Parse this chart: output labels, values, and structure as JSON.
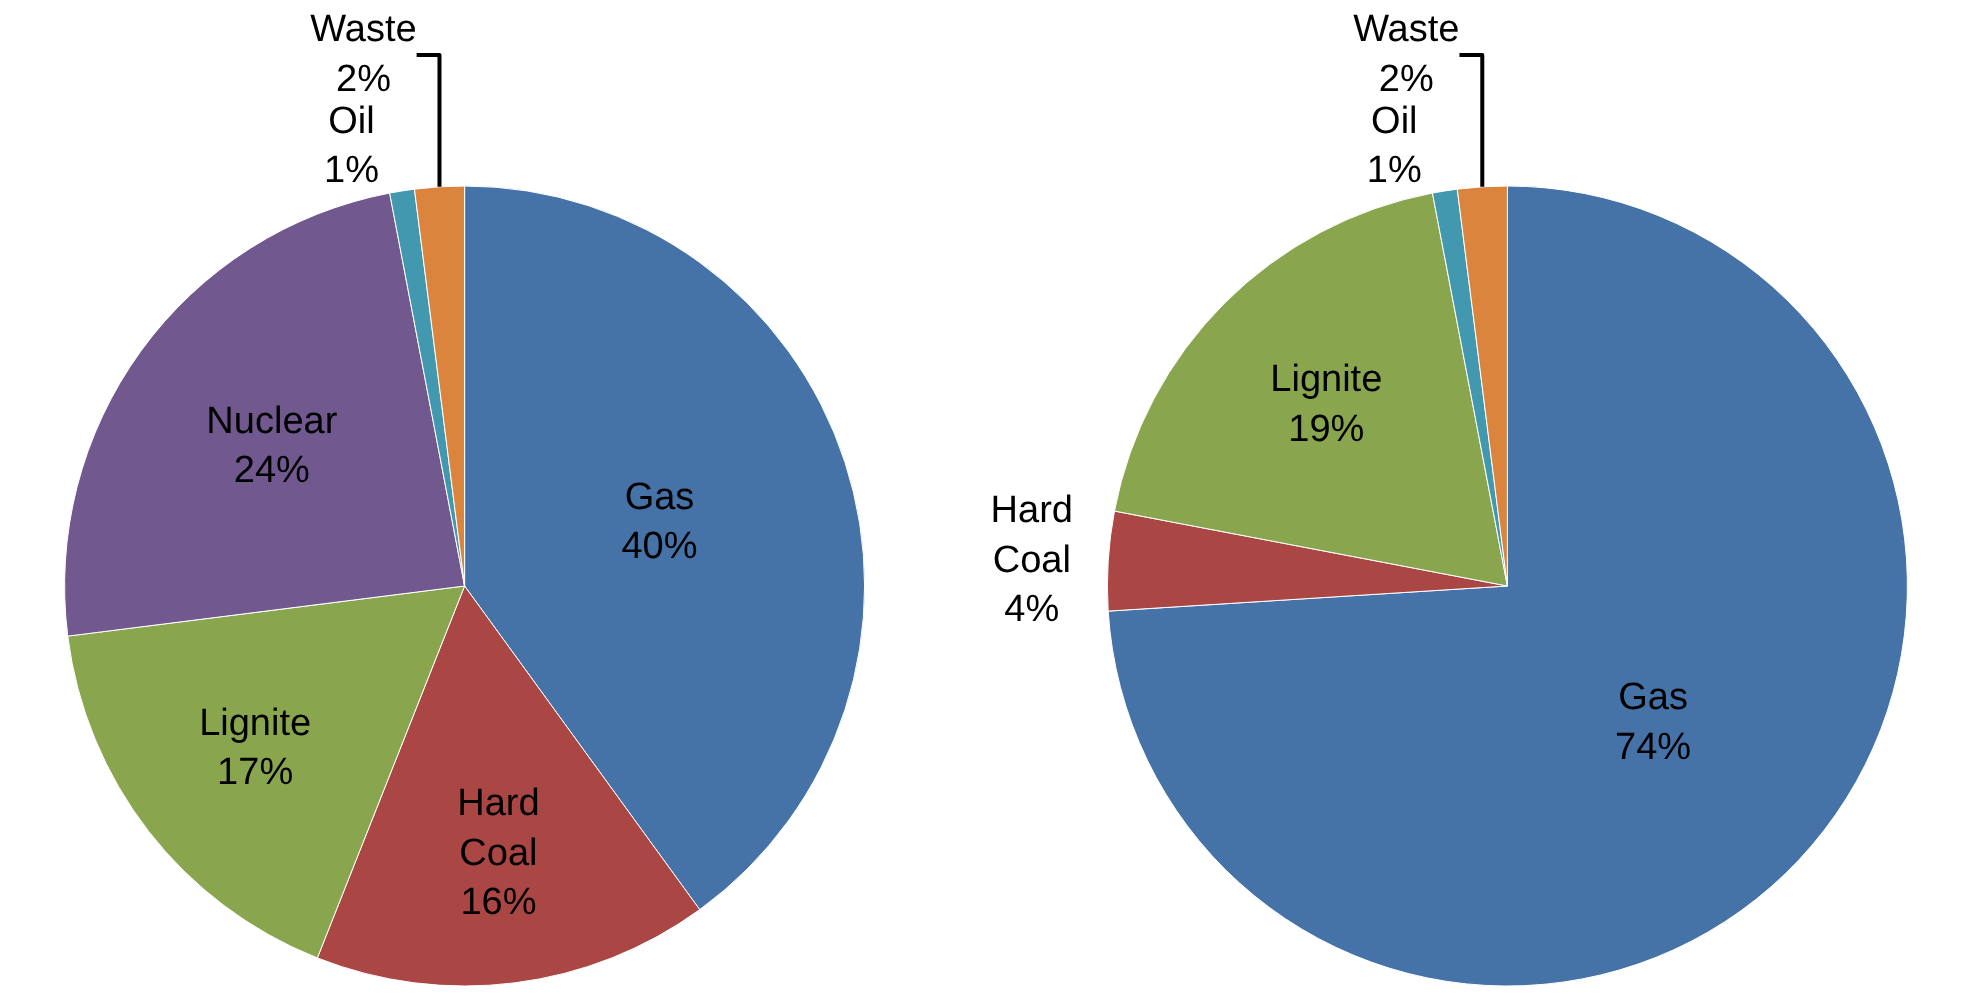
{
  "chart_data": [
    {
      "type": "pie",
      "categories": [
        "Gas",
        "Hard Coal",
        "Lignite",
        "Nuclear",
        "Oil",
        "Waste"
      ],
      "values": [
        40,
        16,
        17,
        24,
        1,
        2
      ],
      "value_labels": [
        "40%",
        "16%",
        "17%",
        "24%",
        "1%",
        "2%"
      ],
      "colors": [
        "#4572a7",
        "#aa4643",
        "#89a54e",
        "#71588f",
        "#4198af",
        "#db843d"
      ],
      "legend": false
    },
    {
      "type": "pie",
      "categories": [
        "Gas",
        "Hard Coal",
        "Lignite",
        "Oil",
        "Waste"
      ],
      "values": [
        74,
        4,
        19,
        1,
        2
      ],
      "value_labels": [
        "74%",
        "4%",
        "19%",
        "1%",
        "2%"
      ],
      "colors": [
        "#4572a7",
        "#aa4643",
        "#89a54e",
        "#4198af",
        "#db843d"
      ],
      "legend": false
    }
  ]
}
